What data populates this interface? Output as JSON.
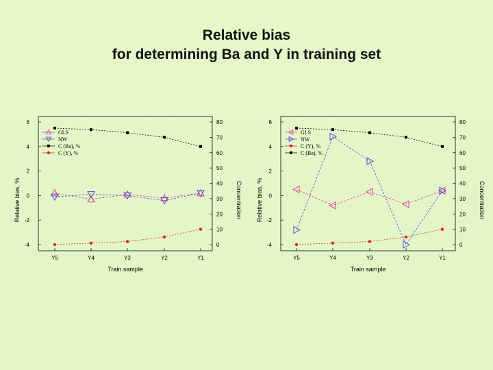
{
  "slide": {
    "title_line1": "Relative bias",
    "title_line2": "for determining Ba and Y in training set"
  },
  "chart_data": [
    {
      "type": "line",
      "categories": [
        "Y5",
        "Y4",
        "Y3",
        "Y2",
        "Y1"
      ],
      "xlabel": "Train sample",
      "ylabel_left": "Relative bias, %",
      "ylabel_right": "Concentration",
      "ylim_left": [
        -4,
        6
      ],
      "ylim_right": [
        0,
        80
      ],
      "yticks_left": [
        -4,
        -2,
        0,
        2,
        4,
        6
      ],
      "yticks_right": [
        0,
        10,
        20,
        30,
        40,
        50,
        60,
        70,
        80
      ],
      "legend_position": "top-left",
      "series": [
        {
          "name": "GLS",
          "axis": "left",
          "marker": "triangle-up",
          "color": "#d9409c",
          "values": [
            0.2,
            -0.3,
            0.1,
            -0.2,
            0.2
          ]
        },
        {
          "name": "NW",
          "axis": "left",
          "marker": "triangle-down",
          "color": "#4b4bd6",
          "values": [
            -0.1,
            0.1,
            0.0,
            -0.4,
            0.2
          ]
        },
        {
          "name": "C (Ba), %",
          "axis": "right",
          "marker": "square",
          "color": "#000000",
          "values": [
            76,
            75,
            73,
            70,
            64
          ]
        },
        {
          "name": "C (Y), %",
          "axis": "right",
          "marker": "circle",
          "color": "#e02020",
          "values": [
            0,
            1,
            2,
            5,
            10
          ]
        }
      ]
    },
    {
      "type": "line",
      "categories": [
        "Y5",
        "Y4",
        "Y3",
        "Y2",
        "Y1"
      ],
      "xlabel": "Train sample",
      "ylabel_left": "Relative bias, %",
      "ylabel_right": "Concentration",
      "ylim_left": [
        -4,
        6
      ],
      "ylim_right": [
        0,
        80
      ],
      "yticks_left": [
        -4,
        -2,
        0,
        2,
        4,
        6
      ],
      "yticks_right": [
        0,
        10,
        20,
        30,
        40,
        50,
        60,
        70,
        80
      ],
      "legend_position": "top-left",
      "series": [
        {
          "name": "GLS",
          "axis": "left",
          "marker": "triangle-left",
          "color": "#d9409c",
          "values": [
            0.5,
            -0.8,
            0.3,
            -0.7,
            0.4
          ]
        },
        {
          "name": "NW",
          "axis": "left",
          "marker": "triangle-right",
          "color": "#4b4bd6",
          "values": [
            -2.8,
            4.8,
            2.8,
            -4.0,
            0.4
          ]
        },
        {
          "name": "C (Y), %",
          "axis": "right",
          "marker": "circle",
          "color": "#e02020",
          "values": [
            0,
            1,
            2,
            5,
            10
          ]
        },
        {
          "name": "C (Ba), %",
          "axis": "right",
          "marker": "square",
          "color": "#000000",
          "values": [
            76,
            75,
            73,
            70,
            64
          ]
        }
      ]
    }
  ]
}
